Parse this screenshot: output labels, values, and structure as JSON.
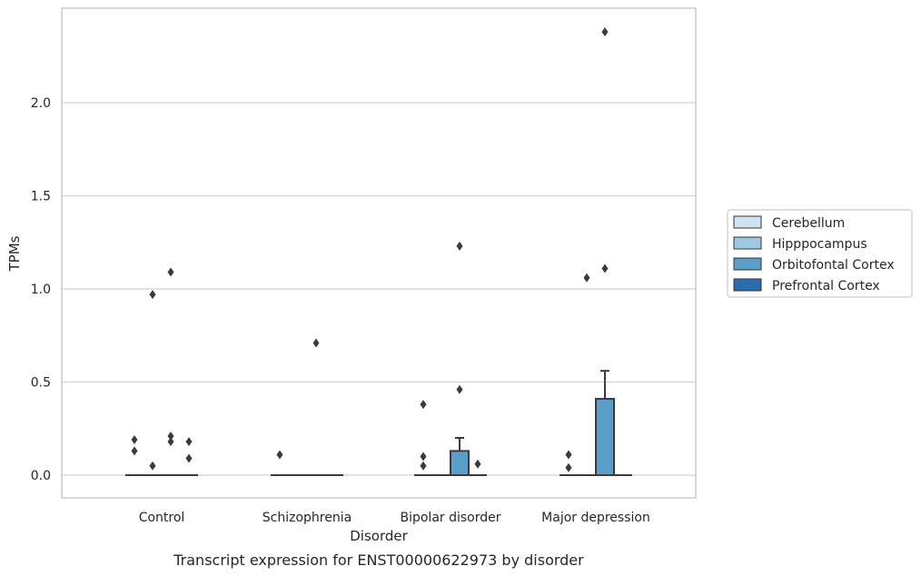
{
  "chart_data": {
    "type": "boxplot",
    "xlabel": "Disorder",
    "ylabel": "TPMs",
    "caption": "Transcript expression for ENST00000622973 by disorder",
    "ylim": [
      -0.115,
      2.5
    ],
    "yticks": [
      "0.0",
      "0.5",
      "1.0",
      "1.5",
      "2.0"
    ],
    "ytick_values": [
      0.0,
      0.5,
      1.0,
      1.5,
      2.0
    ],
    "grid": "horizontal",
    "legend_position": "right",
    "categories": [
      "Control",
      "Schizophrenia",
      "Bipolar disorder",
      "Major depression"
    ],
    "series": [
      {
        "name": "Cerebellum",
        "color": "#d1e2f2"
      },
      {
        "name": "Hipppocampus",
        "color": "#9dc9e1"
      },
      {
        "name": "Orbitofontal Cortex",
        "color": "#5a9ec9"
      },
      {
        "name": "Prefrontal Cortex",
        "color": "#2b6eb0"
      }
    ],
    "boxes": [
      {
        "category": 0,
        "series": 0,
        "q1": 0,
        "median": 0,
        "q3": 0,
        "whisker_low": 0,
        "whisker_high": 0,
        "outliers": [
          0.19,
          0.13
        ]
      },
      {
        "category": 0,
        "series": 1,
        "q1": 0,
        "median": 0,
        "q3": 0,
        "whisker_low": 0,
        "whisker_high": 0,
        "outliers": [
          0.97,
          0.05
        ]
      },
      {
        "category": 0,
        "series": 2,
        "q1": 0,
        "median": 0,
        "q3": 0,
        "whisker_low": 0,
        "whisker_high": 0,
        "outliers": [
          1.09,
          0.21,
          0.18
        ]
      },
      {
        "category": 0,
        "series": 3,
        "q1": 0,
        "median": 0,
        "q3": 0,
        "whisker_low": 0,
        "whisker_high": 0,
        "outliers": [
          0.18,
          0.09
        ]
      },
      {
        "category": 1,
        "series": 0,
        "q1": 0,
        "median": 0,
        "q3": 0,
        "whisker_low": 0,
        "whisker_high": 0,
        "outliers": [
          0.11
        ]
      },
      {
        "category": 1,
        "series": 1,
        "q1": 0,
        "median": 0,
        "q3": 0,
        "whisker_low": 0,
        "whisker_high": 0,
        "outliers": []
      },
      {
        "category": 1,
        "series": 2,
        "q1": 0,
        "median": 0,
        "q3": 0,
        "whisker_low": 0,
        "whisker_high": 0,
        "outliers": [
          0.71
        ]
      },
      {
        "category": 1,
        "series": 3,
        "q1": 0,
        "median": 0,
        "q3": 0,
        "whisker_low": 0,
        "whisker_high": 0,
        "outliers": []
      },
      {
        "category": 2,
        "series": 0,
        "q1": 0,
        "median": 0,
        "q3": 0,
        "whisker_low": 0,
        "whisker_high": 0,
        "outliers": [
          0.38,
          0.1,
          0.05
        ]
      },
      {
        "category": 2,
        "series": 1,
        "q1": 0,
        "median": 0,
        "q3": 0,
        "whisker_low": 0,
        "whisker_high": 0,
        "outliers": []
      },
      {
        "category": 2,
        "series": 2,
        "q1": 0,
        "median": 0,
        "q3": 0.13,
        "whisker_low": 0,
        "whisker_high": 0.2,
        "outliers": [
          1.23,
          0.46
        ]
      },
      {
        "category": 2,
        "series": 3,
        "q1": 0,
        "median": 0,
        "q3": 0,
        "whisker_low": 0,
        "whisker_high": 0,
        "outliers": [
          0.06
        ]
      },
      {
        "category": 3,
        "series": 0,
        "q1": 0,
        "median": 0,
        "q3": 0,
        "whisker_low": 0,
        "whisker_high": 0,
        "outliers": [
          0.11,
          0.04
        ]
      },
      {
        "category": 3,
        "series": 1,
        "q1": 0,
        "median": 0,
        "q3": 0,
        "whisker_low": 0,
        "whisker_high": 0,
        "outliers": [
          1.06
        ]
      },
      {
        "category": 3,
        "series": 2,
        "q1": 0,
        "median": 0,
        "q3": 0.41,
        "whisker_low": 0,
        "whisker_high": 0.56,
        "outliers": [
          2.38,
          1.11
        ]
      },
      {
        "category": 3,
        "series": 3,
        "q1": 0,
        "median": 0,
        "q3": 0,
        "whisker_low": 0,
        "whisker_high": 0,
        "outliers": []
      }
    ]
  }
}
